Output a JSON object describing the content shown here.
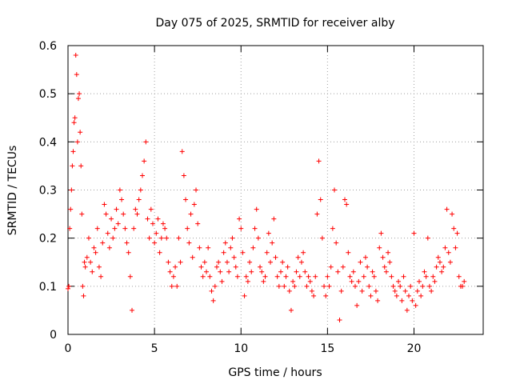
{
  "chart_data": {
    "type": "scatter",
    "title": "Day 075 of 2025, SRMTID for receiver alby",
    "xlabel": "GPS time / hours",
    "ylabel": "SRMTID / TECUs",
    "xlim": [
      0,
      24
    ],
    "ylim": [
      0,
      0.6
    ],
    "xticks": [
      0,
      5,
      10,
      15,
      20
    ],
    "xtick_labels": [
      "0",
      "5",
      "10",
      "15",
      "20"
    ],
    "yticks": [
      0,
      0.1,
      0.2,
      0.3,
      0.4,
      0.5,
      0.6
    ],
    "ytick_labels": [
      "0",
      "0.1",
      "0.2",
      "0.3",
      "0.4",
      "0.5",
      "0.6"
    ],
    "grid": true,
    "marker": "+",
    "series": [
      {
        "name": "SRMTID",
        "color": "#ff0000",
        "x": [
          0.0,
          0.05,
          0.1,
          0.15,
          0.2,
          0.25,
          0.3,
          0.35,
          0.4,
          0.45,
          0.5,
          0.55,
          0.6,
          0.65,
          0.7,
          0.75,
          0.8,
          0.85,
          0.9,
          0.95,
          1.0,
          1.1,
          1.2,
          1.3,
          1.4,
          1.5,
          1.6,
          1.7,
          1.8,
          1.9,
          2.0,
          2.1,
          2.2,
          2.3,
          2.4,
          2.5,
          2.6,
          2.7,
          2.8,
          2.9,
          3.0,
          3.1,
          3.2,
          3.3,
          3.4,
          3.5,
          3.6,
          3.7,
          3.8,
          3.9,
          4.0,
          4.1,
          4.2,
          4.3,
          4.4,
          4.5,
          4.6,
          4.7,
          4.8,
          4.9,
          5.0,
          5.1,
          5.2,
          5.3,
          5.4,
          5.5,
          5.6,
          5.7,
          5.8,
          5.9,
          6.0,
          6.1,
          6.2,
          6.3,
          6.4,
          6.5,
          6.6,
          6.7,
          6.8,
          6.9,
          7.0,
          7.1,
          7.2,
          7.3,
          7.4,
          7.5,
          7.6,
          7.7,
          7.8,
          7.9,
          8.0,
          8.1,
          8.2,
          8.3,
          8.4,
          8.5,
          8.6,
          8.7,
          8.8,
          8.9,
          9.0,
          9.1,
          9.2,
          9.3,
          9.4,
          9.5,
          9.6,
          9.7,
          9.8,
          9.9,
          10.0,
          10.1,
          10.2,
          10.3,
          10.4,
          10.5,
          10.6,
          10.7,
          10.8,
          10.9,
          11.0,
          11.1,
          11.2,
          11.3,
          11.4,
          11.5,
          11.6,
          11.7,
          11.8,
          11.9,
          12.0,
          12.1,
          12.2,
          12.3,
          12.4,
          12.5,
          12.6,
          12.7,
          12.8,
          12.9,
          13.0,
          13.1,
          13.2,
          13.3,
          13.4,
          13.5,
          13.6,
          13.7,
          13.8,
          13.9,
          14.0,
          14.1,
          14.2,
          14.3,
          14.4,
          14.5,
          14.6,
          14.7,
          14.8,
          14.9,
          15.0,
          15.1,
          15.2,
          15.3,
          15.4,
          15.5,
          15.6,
          15.7,
          15.8,
          15.9,
          16.0,
          16.1,
          16.2,
          16.3,
          16.4,
          16.5,
          16.6,
          16.7,
          16.8,
          16.9,
          17.0,
          17.1,
          17.2,
          17.3,
          17.4,
          17.5,
          17.6,
          17.7,
          17.8,
          17.9,
          18.0,
          18.1,
          18.2,
          18.3,
          18.4,
          18.5,
          18.6,
          18.7,
          18.8,
          18.9,
          19.0,
          19.1,
          19.2,
          19.3,
          19.4,
          19.5,
          19.6,
          19.7,
          19.8,
          19.9,
          20.0,
          20.1,
          20.2,
          20.3,
          20.4,
          20.5,
          20.6,
          20.7,
          20.8,
          20.9,
          21.0,
          21.1,
          21.2,
          21.3,
          21.4,
          21.5,
          21.6,
          21.7,
          21.8,
          21.9,
          22.0,
          22.1,
          22.2,
          22.3,
          22.4,
          22.5,
          22.6,
          22.7,
          22.8,
          22.9
        ],
        "y": [
          0.095,
          0.1,
          0.22,
          0.26,
          0.3,
          0.35,
          0.38,
          0.44,
          0.45,
          0.58,
          0.54,
          0.4,
          0.49,
          0.5,
          0.42,
          0.35,
          0.25,
          0.1,
          0.08,
          0.15,
          0.14,
          0.16,
          0.2,
          0.15,
          0.13,
          0.18,
          0.17,
          0.22,
          0.14,
          0.12,
          0.19,
          0.27,
          0.25,
          0.21,
          0.18,
          0.24,
          0.2,
          0.22,
          0.26,
          0.23,
          0.3,
          0.28,
          0.25,
          0.22,
          0.19,
          0.17,
          0.12,
          0.05,
          0.22,
          0.26,
          0.25,
          0.28,
          0.3,
          0.33,
          0.36,
          0.4,
          0.24,
          0.2,
          0.26,
          0.23,
          0.19,
          0.21,
          0.24,
          0.17,
          0.2,
          0.23,
          0.22,
          0.2,
          0.15,
          0.13,
          0.1,
          0.12,
          0.14,
          0.1,
          0.2,
          0.15,
          0.38,
          0.33,
          0.28,
          0.22,
          0.19,
          0.25,
          0.16,
          0.27,
          0.3,
          0.23,
          0.18,
          0.14,
          0.12,
          0.15,
          0.13,
          0.18,
          0.12,
          0.09,
          0.07,
          0.1,
          0.14,
          0.15,
          0.13,
          0.11,
          0.17,
          0.19,
          0.15,
          0.13,
          0.18,
          0.2,
          0.16,
          0.14,
          0.12,
          0.24,
          0.22,
          0.17,
          0.08,
          0.12,
          0.11,
          0.15,
          0.13,
          0.18,
          0.22,
          0.26,
          0.2,
          0.14,
          0.13,
          0.11,
          0.12,
          0.17,
          0.21,
          0.15,
          0.19,
          0.24,
          0.16,
          0.12,
          0.1,
          0.13,
          0.15,
          0.1,
          0.12,
          0.14,
          0.09,
          0.05,
          0.11,
          0.1,
          0.13,
          0.16,
          0.12,
          0.15,
          0.17,
          0.13,
          0.1,
          0.12,
          0.11,
          0.09,
          0.08,
          0.12,
          0.25,
          0.36,
          0.28,
          0.2,
          0.1,
          0.08,
          0.12,
          0.1,
          0.14,
          0.22,
          0.3,
          0.19,
          0.13,
          0.03,
          0.09,
          0.14,
          0.28,
          0.27,
          0.17,
          0.12,
          0.11,
          0.13,
          0.1,
          0.06,
          0.11,
          0.15,
          0.09,
          0.12,
          0.16,
          0.14,
          0.1,
          0.08,
          0.13,
          0.12,
          0.09,
          0.07,
          0.18,
          0.21,
          0.16,
          0.14,
          0.13,
          0.17,
          0.15,
          0.12,
          0.1,
          0.09,
          0.08,
          0.11,
          0.1,
          0.07,
          0.12,
          0.09,
          0.05,
          0.08,
          0.1,
          0.07,
          0.21,
          0.06,
          0.09,
          0.11,
          0.08,
          0.1,
          0.13,
          0.12,
          0.2,
          0.1,
          0.09,
          0.12,
          0.11,
          0.14,
          0.16,
          0.15,
          0.13,
          0.14,
          0.18,
          0.26,
          0.17,
          0.15,
          0.25,
          0.22,
          0.18,
          0.21,
          0.12,
          0.1,
          0.1,
          0.11
        ]
      }
    ]
  }
}
